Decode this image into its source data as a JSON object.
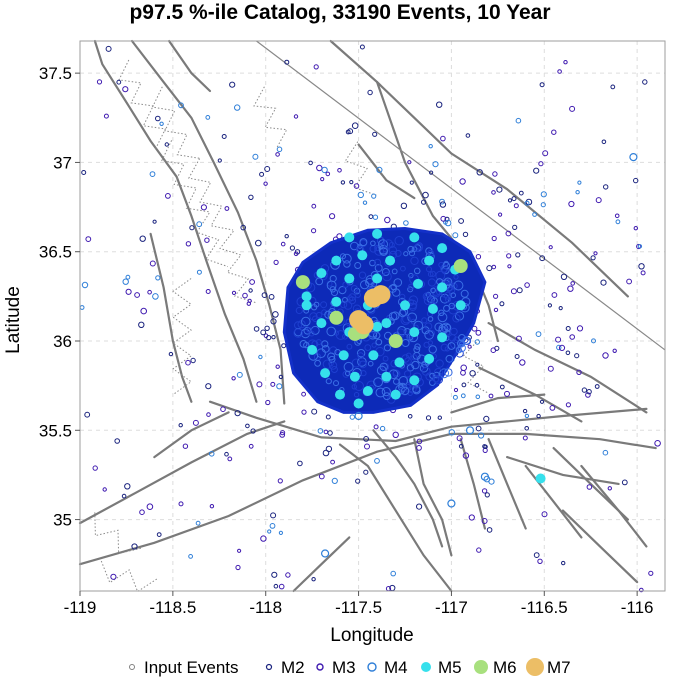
{
  "chart_data": {
    "type": "scatter",
    "title": "p97.5 %-ile Catalog, 33190 Events, 10 Year",
    "xlabel": "Longitude",
    "ylabel": "Latitude",
    "xlim": [
      -119.0,
      -115.85
    ],
    "ylim": [
      34.6,
      37.68
    ],
    "xticks": [
      -119,
      -118.5,
      -118,
      -117.5,
      -117,
      -116.5,
      -116
    ],
    "xtick_labels": [
      "-119",
      "-118.5",
      "-118",
      "-117.5",
      "-117",
      "-116.5",
      "-116"
    ],
    "yticks": [
      35,
      35.5,
      36,
      36.5,
      37,
      37.5
    ],
    "ytick_labels": [
      "35",
      "35.5",
      "36",
      "36.5",
      "37",
      "37.5"
    ],
    "grid": true,
    "legend_placement": "bottom",
    "legend": [
      {
        "label": "Input Events",
        "style": "input"
      },
      {
        "label": "M2",
        "style": "m2"
      },
      {
        "label": "M3",
        "style": "m3"
      },
      {
        "label": "M4",
        "style": "m4"
      },
      {
        "label": "M5",
        "style": "m5"
      },
      {
        "label": "M6",
        "style": "m6"
      },
      {
        "label": "M7",
        "style": "m7"
      }
    ],
    "colors": {
      "m2": "#1a237e",
      "m3": "#3f1ab0",
      "m4": "#2f7fd8",
      "m5": "#36e0ec",
      "m6": "#a8e07e",
      "m7": "#ecbe66",
      "input": "#808080",
      "cluster": "#0d2ab8",
      "faults": "#7a7a7a"
    },
    "cluster_region": {
      "outline": [
        [
          -117.88,
          36.3
        ],
        [
          -117.8,
          36.44
        ],
        [
          -117.65,
          36.55
        ],
        [
          -117.45,
          36.62
        ],
        [
          -117.25,
          36.63
        ],
        [
          -117.05,
          36.6
        ],
        [
          -116.9,
          36.5
        ],
        [
          -116.82,
          36.33
        ],
        [
          -116.88,
          36.1
        ],
        [
          -116.98,
          35.92
        ],
        [
          -117.08,
          35.75
        ],
        [
          -117.22,
          35.64
        ],
        [
          -117.42,
          35.6
        ],
        [
          -117.58,
          35.6
        ],
        [
          -117.72,
          35.66
        ],
        [
          -117.85,
          35.82
        ],
        [
          -117.9,
          36.05
        ]
      ]
    },
    "series": [
      {
        "name": "M5",
        "points": [
          [
            -117.55,
            36.58
          ],
          [
            -117.4,
            36.6
          ],
          [
            -117.2,
            36.58
          ],
          [
            -117.05,
            36.52
          ],
          [
            -117.62,
            36.45
          ],
          [
            -117.48,
            36.48
          ],
          [
            -117.33,
            36.45
          ],
          [
            -117.12,
            36.45
          ],
          [
            -116.98,
            36.4
          ],
          [
            -117.7,
            36.38
          ],
          [
            -117.55,
            36.35
          ],
          [
            -117.4,
            36.35
          ],
          [
            -117.18,
            36.32
          ],
          [
            -117.05,
            36.3
          ],
          [
            -117.78,
            36.25
          ],
          [
            -117.62,
            36.22
          ],
          [
            -117.45,
            36.2
          ],
          [
            -117.25,
            36.2
          ],
          [
            -117.1,
            36.18
          ],
          [
            -116.95,
            36.2
          ],
          [
            -117.7,
            36.1
          ],
          [
            -117.55,
            36.05
          ],
          [
            -117.4,
            36.08
          ],
          [
            -117.2,
            36.05
          ],
          [
            -117.05,
            36.02
          ],
          [
            -117.75,
            35.95
          ],
          [
            -117.58,
            35.92
          ],
          [
            -117.42,
            35.92
          ],
          [
            -117.28,
            35.88
          ],
          [
            -117.12,
            35.9
          ],
          [
            -117.68,
            35.82
          ],
          [
            -117.52,
            35.8
          ],
          [
            -117.35,
            35.8
          ],
          [
            -117.2,
            35.78
          ],
          [
            -117.6,
            35.7
          ],
          [
            -117.45,
            35.72
          ],
          [
            -117.3,
            35.7
          ],
          [
            -117.5,
            35.65
          ],
          [
            -116.52,
            35.23
          ],
          [
            -117.78,
            36.2
          ],
          [
            -117.35,
            36.1
          ]
        ]
      },
      {
        "name": "M6",
        "points": [
          [
            -117.8,
            36.33
          ],
          [
            -116.95,
            36.42
          ],
          [
            -117.62,
            36.13
          ],
          [
            -117.48,
            36.05
          ],
          [
            -117.3,
            36.0
          ],
          [
            -117.52,
            36.04
          ]
        ]
      },
      {
        "name": "M7",
        "points": [
          [
            -117.42,
            36.24
          ],
          [
            -117.47,
            36.09
          ],
          [
            -117.38,
            36.26
          ],
          [
            -117.5,
            36.12
          ]
        ]
      },
      {
        "name": "M4",
        "points": [
          [
            -116.02,
            37.03
          ],
          [
            -117.68,
            34.81
          ],
          [
            -116.82,
            35.24
          ],
          [
            -117.0,
            35.09
          ],
          [
            -117.5,
            35.58
          ],
          [
            -116.9,
            35.5
          ]
        ]
      }
    ],
    "scattered_events": {
      "description": "background events outside main cluster, drawn as small open circles",
      "count_approx": 420
    }
  }
}
